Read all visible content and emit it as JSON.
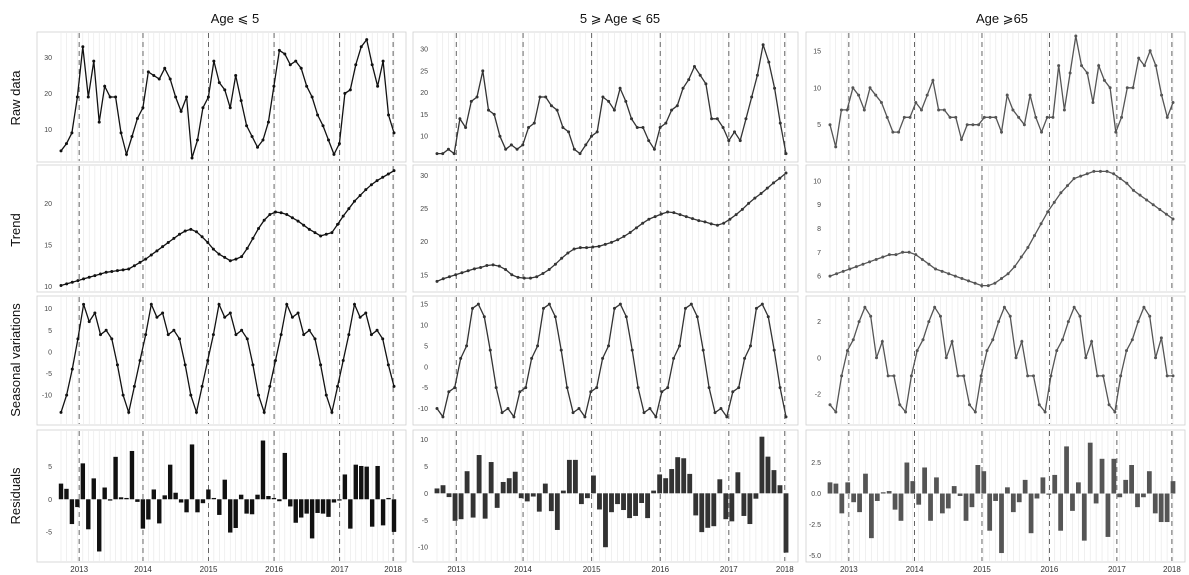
{
  "chart_data": {
    "type": "line",
    "column_titles": [
      "Age ⩽ 5",
      "5 ⩾ Age ⩽ 65",
      "Age ⩾65"
    ],
    "row_labels": [
      "Raw data",
      "Trend",
      "Seasonal variations",
      "Residuals"
    ],
    "x_ticks": [
      "2013",
      "2014",
      "2015",
      "2016",
      "2017",
      "2018"
    ],
    "panels": {
      "col0": {
        "raw": {
          "yticks": [
            "10",
            "20",
            "30"
          ],
          "ylim": [
            2,
            36
          ],
          "values": [
            4,
            6,
            9,
            19,
            33,
            19,
            29,
            12,
            22,
            19,
            19,
            9,
            3,
            8,
            13,
            16,
            26,
            25,
            24,
            27,
            24,
            19,
            15,
            19,
            2,
            7,
            16,
            19,
            29,
            23,
            21,
            16,
            25,
            18,
            11,
            8,
            5,
            7,
            12,
            22,
            32,
            31,
            28,
            29,
            27,
            22,
            19,
            14,
            11,
            7,
            3,
            6,
            20,
            21,
            28,
            33,
            35,
            28,
            22,
            29,
            14,
            9
          ]
        },
        "trend": {
          "yticks": [
            "10",
            "15",
            "20"
          ],
          "ylim": [
            9.8,
            24.2
          ],
          "values": [
            10.1,
            10.3,
            10.5,
            10.7,
            10.9,
            11.1,
            11.3,
            11.5,
            11.7,
            11.8,
            11.9,
            12.0,
            12.1,
            12.5,
            12.9,
            13.3,
            13.8,
            14.3,
            14.8,
            15.3,
            15.8,
            16.3,
            16.7,
            16.9,
            16.6,
            16.0,
            15.3,
            14.5,
            13.9,
            13.5,
            13.1,
            13.3,
            13.6,
            14.6,
            15.8,
            17.0,
            18.0,
            18.7,
            19.0,
            18.9,
            18.7,
            18.3,
            17.9,
            17.4,
            16.9,
            16.5,
            16.1,
            16.3,
            16.5,
            17.5,
            18.5,
            19.4,
            20.3,
            21.0,
            21.7,
            22.3,
            22.8,
            23.2,
            23.6,
            24.0
          ]
        },
        "seasonal": {
          "yticks": [
            "10",
            "5",
            "0",
            "-5",
            "-10"
          ],
          "ylim": [
            -16,
            12
          ],
          "values": [
            -14,
            -10,
            -4,
            3,
            11,
            7,
            9,
            4,
            5,
            3,
            -3,
            -10,
            -14,
            -8,
            -2,
            4,
            11,
            8,
            9,
            4,
            5,
            3,
            -3,
            -10,
            -14,
            -8,
            -2,
            4,
            11,
            8,
            9,
            4,
            5,
            3,
            -3,
            -10,
            -14,
            -8,
            -2,
            4,
            11,
            8,
            9,
            4,
            5,
            3,
            -3,
            -10,
            -14,
            -8,
            -2,
            4,
            11,
            8,
            9,
            4,
            5,
            3,
            -3,
            -8
          ]
        },
        "residuals": {
          "yticks": [
            "5",
            "0",
            "-5"
          ],
          "ylim": [
            -9,
            10
          ],
          "values": [
            2.4,
            1.6,
            -3.8,
            -1.2,
            5.5,
            -4.6,
            3.2,
            -8.0,
            1.8,
            -0.2,
            6.5,
            0.3,
            0.2,
            7.4,
            -0.4,
            -4.5,
            -3.1,
            1.5,
            -3.7,
            0.6,
            5.3,
            1.0,
            -0.5,
            -2.0,
            8.4,
            -2.0,
            -0.6,
            1.5,
            0.2,
            -2.4,
            3.0,
            -5.1,
            -4.4,
            0.7,
            -2.2,
            -2.3,
            0.7,
            9.0,
            0.5,
            0.2,
            -0.3,
            7.1,
            -1.1,
            -3.6,
            -2.8,
            -2.2,
            -6.0,
            -2.1,
            -2.2,
            -2.7,
            -0.5,
            -0.2,
            3.8,
            -4.5,
            5.3,
            5.1,
            5.0,
            -4.2,
            5.1,
            -4.0,
            0.2,
            -5.0
          ]
        }
      },
      "col1": {
        "raw": {
          "yticks": [
            "10",
            "15",
            "20",
            "25",
            "30"
          ],
          "ylim": [
            5,
            33
          ],
          "values": [
            6,
            6,
            7,
            6,
            14,
            12,
            18,
            19,
            25,
            16,
            15,
            10,
            7,
            8,
            7,
            8,
            12,
            13,
            19,
            19,
            17,
            16,
            12,
            11,
            7,
            6,
            8,
            10,
            11,
            19,
            18,
            16,
            21,
            18,
            14,
            12,
            12,
            9,
            7,
            12,
            13,
            16,
            17,
            21,
            23,
            26,
            24,
            22,
            14,
            14,
            12,
            9,
            11,
            9,
            14,
            19,
            24,
            31,
            27,
            21,
            13,
            6
          ]
        },
        "trend": {
          "yticks": [
            "15",
            "20",
            "25",
            "30"
          ],
          "ylim": [
            13,
            31
          ],
          "values": [
            14.0,
            14.4,
            14.7,
            15.0,
            15.3,
            15.6,
            15.9,
            16.1,
            16.4,
            16.5,
            16.3,
            15.8,
            15.0,
            14.6,
            14.5,
            14.5,
            14.7,
            15.2,
            15.8,
            16.6,
            17.5,
            18.3,
            18.9,
            19.1,
            19.1,
            19.2,
            19.3,
            19.6,
            19.9,
            20.3,
            20.8,
            21.4,
            22.1,
            22.8,
            23.4,
            23.8,
            24.2,
            24.5,
            24.4,
            24.1,
            23.8,
            23.5,
            23.2,
            23.0,
            22.7,
            22.5,
            22.8,
            23.4,
            24.1,
            24.9,
            25.8,
            26.6,
            27.3,
            28.1,
            28.9,
            29.6,
            30.4
          ]
        },
        "seasonal": {
          "yticks": [
            "15",
            "10",
            "5",
            "0",
            "-5",
            "-10"
          ],
          "ylim": [
            -13,
            16
          ],
          "values": [
            -10,
            -12,
            -6,
            -5,
            2,
            5,
            14,
            15,
            12,
            4,
            -5,
            -11,
            -10,
            -12,
            -6,
            -5,
            2,
            5,
            14,
            15,
            12,
            4,
            -5,
            -11,
            -10,
            -12,
            -6,
            -5,
            2,
            5,
            14,
            15,
            12,
            4,
            -5,
            -11,
            -10,
            -12,
            -6,
            -5,
            2,
            5,
            14,
            15,
            12,
            4,
            -5,
            -11,
            -10,
            -12,
            -6,
            -5,
            2,
            5,
            14,
            15,
            12,
            4,
            -5,
            -12
          ]
        },
        "residuals": {
          "yticks": [
            "10",
            "5",
            "0",
            "-5",
            "-10"
          ],
          "ylim": [
            -12,
            11
          ],
          "values": [
            0.9,
            1.5,
            -0.7,
            -5.1,
            -4.8,
            4.1,
            -4.5,
            7.1,
            -4.7,
            5.8,
            -2.7,
            2.1,
            2.8,
            4.0,
            -0.9,
            -1.5,
            -0.6,
            -3.4,
            1.8,
            -3.3,
            -6.8,
            0.5,
            6.2,
            6.2,
            -2.0,
            -0.9,
            3.3,
            -3.0,
            -10.0,
            -3.5,
            -2.0,
            -3.1,
            -4.6,
            -4.2,
            -1.8,
            -4.6,
            0.5,
            3.5,
            2.8,
            4.5,
            6.7,
            6.5,
            3.6,
            -4.1,
            -7.2,
            -6.4,
            -6.1,
            2.6,
            -4.8,
            -5.2,
            3.9,
            -4.2,
            -5.7,
            -1.0,
            10.5,
            6.8,
            4.3,
            1.5,
            -11.0
          ]
        }
      },
      "col2": {
        "raw": {
          "yticks": [
            "5",
            "10",
            "15"
          ],
          "ylim": [
            0.5,
            17
          ],
          "values": [
            5,
            2,
            7,
            7,
            10,
            9,
            7,
            10,
            9,
            8,
            6,
            4,
            4,
            6,
            6,
            8,
            7,
            9,
            11,
            7,
            7,
            6,
            6,
            3,
            5,
            5,
            5,
            6,
            6,
            6,
            4,
            9,
            7,
            6,
            5,
            9,
            6,
            4,
            6,
            6,
            13,
            7,
            12,
            17,
            13,
            12,
            8,
            13,
            11,
            10,
            4,
            6,
            10,
            10,
            14,
            13,
            15,
            13,
            9,
            6,
            8
          ]
        },
        "trend": {
          "yticks": [
            "6",
            "7",
            "8",
            "9",
            "10"
          ],
          "ylim": [
            5.5,
            10.5
          ],
          "values": [
            6.0,
            6.1,
            6.2,
            6.3,
            6.4,
            6.5,
            6.6,
            6.7,
            6.8,
            6.9,
            6.9,
            7.0,
            7.0,
            6.9,
            6.7,
            6.5,
            6.3,
            6.2,
            6.1,
            6.0,
            5.9,
            5.8,
            5.7,
            5.6,
            5.6,
            5.7,
            5.9,
            6.1,
            6.4,
            6.8,
            7.2,
            7.7,
            8.2,
            8.7,
            9.1,
            9.5,
            9.8,
            10.1,
            10.2,
            10.3,
            10.4,
            10.4,
            10.4,
            10.3,
            10.1,
            9.9,
            9.6,
            9.4,
            9.2,
            9.0,
            8.8,
            8.6,
            8.4
          ]
        },
        "seasonal": {
          "yticks": [
            "2",
            "0",
            "-2"
          ],
          "ylim": [
            -3.5,
            3.2
          ],
          "values": [
            -2.6,
            -3.0,
            -1.0,
            0.4,
            1.0,
            2.0,
            2.8,
            2.3,
            0.0,
            0.9,
            -1.0,
            -1.0,
            -2.6,
            -3.0,
            -1.0,
            0.4,
            1.0,
            2.0,
            2.8,
            2.3,
            0.0,
            0.9,
            -1.0,
            -1.0,
            -2.6,
            -3.0,
            -1.0,
            0.4,
            1.0,
            2.0,
            2.8,
            2.3,
            0.0,
            0.9,
            -1.0,
            -1.0,
            -2.6,
            -3.0,
            -1.0,
            0.4,
            1.0,
            2.0,
            2.8,
            2.3,
            0.0,
            0.9,
            -1.0,
            -1.0,
            -2.6,
            -3.0,
            -1.0,
            0.4,
            1.0,
            2.0,
            2.8,
            2.3,
            0.0,
            1.1,
            -1.0,
            -1.0
          ]
        },
        "residuals": {
          "yticks": [
            "2.5",
            "0.0",
            "-2.5",
            "-5.0"
          ],
          "ylim": [
            -5.2,
            4.8
          ],
          "values": [
            0.9,
            0.8,
            -1.6,
            0.9,
            -0.7,
            -1.5,
            1.6,
            -3.6,
            -0.6,
            0.1,
            0.2,
            -1.3,
            -2.2,
            2.5,
            1.0,
            -0.9,
            2.1,
            -2.2,
            1.3,
            -1.6,
            -1.2,
            0.6,
            -0.2,
            -2.2,
            -1.1,
            2.3,
            1.8,
            -3.0,
            -0.6,
            -4.8,
            0.5,
            -1.5,
            -0.7,
            1.1,
            -3.2,
            -0.4,
            1.3,
            -0.1,
            1.5,
            -3.0,
            3.8,
            -1.4,
            0.9,
            -3.8,
            4.1,
            -0.8,
            2.8,
            -3.5,
            2.8,
            -0.3,
            1.1,
            2.3,
            -1.1,
            -0.3,
            1.8,
            -1.6,
            -2.3,
            -2.3,
            1.0
          ]
        }
      }
    }
  }
}
